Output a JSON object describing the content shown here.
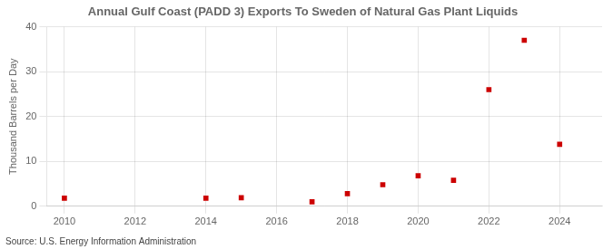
{
  "chart_data": {
    "type": "scatter",
    "title": "Annual Gulf Coast (PADD 3) Exports To Sweden of Natural Gas Plant Liquids",
    "ylabel": "Thousand Barrels per Day",
    "annotations": [
      "Source: U.S. Energy Information Administration"
    ],
    "x": [
      2010,
      2014,
      2015,
      2017,
      2018,
      2019,
      2020,
      2021,
      2022,
      2023,
      2024
    ],
    "values": [
      1.8,
      1.8,
      1.9,
      1.0,
      2.8,
      4.8,
      6.8,
      5.8,
      26.0,
      37.0,
      13.8
    ],
    "color": "#cc0000",
    "marker": "square",
    "xlim": [
      2009.5,
      2025.2
    ],
    "ylim": [
      0,
      40
    ],
    "xticks": [
      2010,
      2012,
      2014,
      2016,
      2018,
      2020,
      2022,
      2024
    ],
    "yticks": [
      0,
      10,
      20,
      30,
      40
    ],
    "grid": true
  }
}
